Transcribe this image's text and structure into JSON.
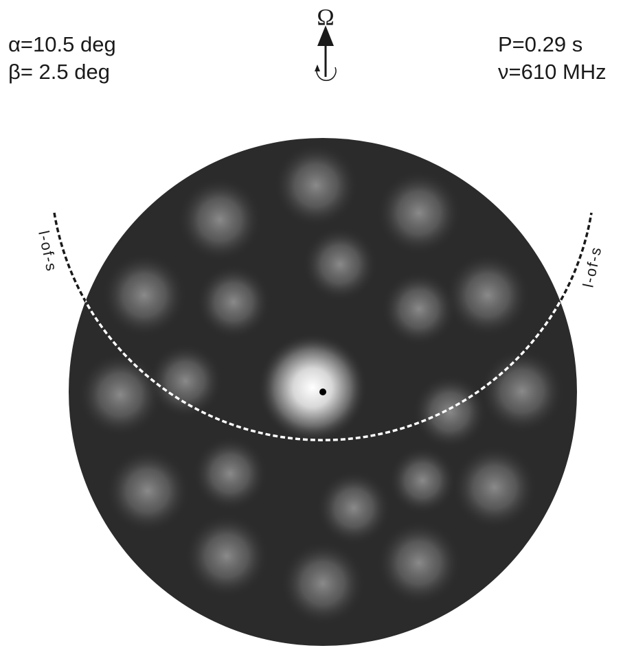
{
  "parameters": {
    "alpha": "α=10.5 deg",
    "beta": "β= 2.5 deg",
    "period": "P=0.29 s",
    "frequency": "ν=610 MHz"
  },
  "rotation_axis": {
    "label": "Ω"
  },
  "line_of_sight": {
    "labels": [
      "l-of-s",
      "l-of-s"
    ]
  }
}
